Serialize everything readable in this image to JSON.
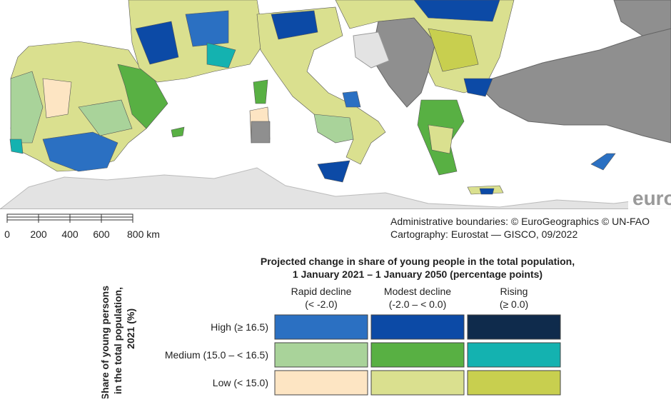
{
  "map": {
    "logo": "eurostat",
    "scale_bar": {
      "labels": [
        "0",
        "200",
        "400",
        "600",
        "800 km"
      ]
    },
    "credits": [
      "Administrative boundaries: © EuroGeographics © UN-FAO",
      "Cartography: Eurostat — GISCO, 09/2022"
    ]
  },
  "legend": {
    "title": [
      "Projected change in share of young people in the total population,",
      "1 January 2021 – 1 January 2050 (percentage points)"
    ],
    "axis_label": [
      "Share of young persons",
      "in the total population,",
      "2021 (%)"
    ],
    "columns": [
      {
        "label": "Rapid decline",
        "range": "(< -2.0)"
      },
      {
        "label": "Modest decline",
        "range": "(-2.0 – < 0.0)"
      },
      {
        "label": "Rising",
        "range": "(≥ 0.0)"
      }
    ],
    "rows": [
      {
        "label": "High (≥ 16.5)",
        "colors": [
          "#2b70c2",
          "#0c4aa6",
          "#0f2b4c"
        ]
      },
      {
        "label": "Medium (15.0 – < 16.5)",
        "colors": [
          "#a9d39a",
          "#58b043",
          "#14b2b0"
        ]
      },
      {
        "label": "Low (< 15.0)",
        "colors": [
          "#fde5c3",
          "#dae08f",
          "#c8cf4f"
        ]
      }
    ]
  }
}
